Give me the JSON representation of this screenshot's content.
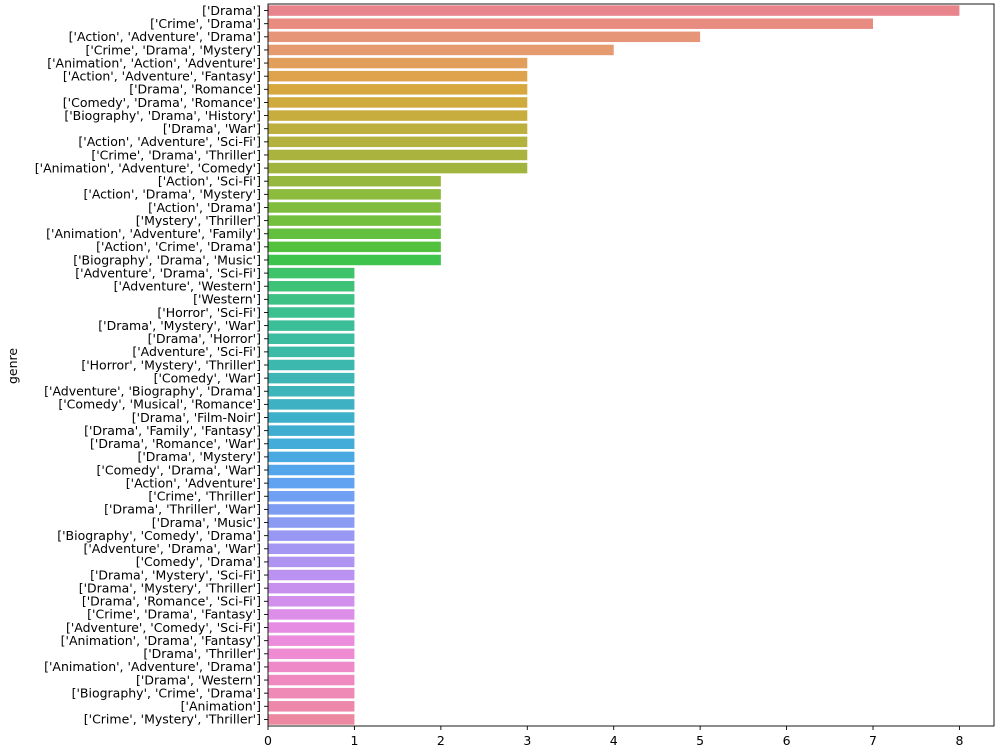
{
  "chart_data": {
    "type": "bar",
    "orientation": "horizontal",
    "title": "",
    "xlabel": "",
    "ylabel": "genre",
    "xlim": [
      0,
      8.4
    ],
    "xticks": [
      "0",
      "1",
      "2",
      "3",
      "4",
      "5",
      "6",
      "7",
      "8"
    ],
    "grid": false,
    "legend": "none",
    "categories": [
      "['Drama']",
      "['Crime', 'Drama']",
      "['Action', 'Adventure', 'Drama']",
      "['Crime', 'Drama', 'Mystery']",
      "['Animation', 'Action', 'Adventure']",
      "['Action', 'Adventure', 'Fantasy']",
      "['Drama', 'Romance']",
      "['Comedy', 'Drama', 'Romance']",
      "['Biography', 'Drama', 'History']",
      "['Drama', 'War']",
      "['Action', 'Adventure', 'Sci-Fi']",
      "['Crime', 'Drama', 'Thriller']",
      "['Animation', 'Adventure', 'Comedy']",
      "['Action', 'Sci-Fi']",
      "['Action', 'Drama', 'Mystery']",
      "['Action', 'Drama']",
      "['Mystery', 'Thriller']",
      "['Animation', 'Adventure', 'Family']",
      "['Action', 'Crime', 'Drama']",
      "['Biography', 'Drama', 'Music']",
      "['Adventure', 'Drama', 'Sci-Fi']",
      "['Adventure', 'Western']",
      "['Western']",
      "['Horror', 'Sci-Fi']",
      "['Drama', 'Mystery', 'War']",
      "['Drama', 'Horror']",
      "['Adventure', 'Sci-Fi']",
      "['Horror', 'Mystery', 'Thriller']",
      "['Comedy', 'War']",
      "['Adventure', 'Biography', 'Drama']",
      "['Comedy', 'Musical', 'Romance']",
      "['Drama', 'Film-Noir']",
      "['Drama', 'Family', 'Fantasy']",
      "['Drama', 'Romance', 'War']",
      "['Drama', 'Mystery']",
      "['Comedy', 'Drama', 'War']",
      "['Action', 'Adventure']",
      "['Crime', 'Thriller']",
      "['Drama', 'Thriller', 'War']",
      "['Drama', 'Music']",
      "['Biography', 'Comedy', 'Drama']",
      "['Adventure', 'Drama', 'War']",
      "['Comedy', 'Drama']",
      "['Drama', 'Mystery', 'Sci-Fi']",
      "['Drama', 'Mystery', 'Thriller']",
      "['Drama', 'Romance', 'Sci-Fi']",
      "['Crime', 'Drama', 'Fantasy']",
      "['Adventure', 'Comedy', 'Sci-Fi']",
      "['Animation', 'Drama', 'Fantasy']",
      "['Drama', 'Thriller']",
      "['Animation', 'Adventure', 'Drama']",
      "['Drama', 'Western']",
      "['Biography', 'Crime', 'Drama']",
      "['Animation']",
      "['Crime', 'Mystery', 'Thriller']"
    ],
    "values": [
      8,
      7,
      5,
      4,
      3,
      3,
      3,
      3,
      3,
      3,
      3,
      3,
      3,
      2,
      2,
      2,
      2,
      2,
      2,
      2,
      1,
      1,
      1,
      1,
      1,
      1,
      1,
      1,
      1,
      1,
      1,
      1,
      1,
      1,
      1,
      1,
      1,
      1,
      1,
      1,
      1,
      1,
      1,
      1,
      1,
      1,
      1,
      1,
      1,
      1,
      1,
      1,
      1,
      1,
      1
    ],
    "colors": [
      "#e8848c",
      "#e88b80",
      "#e79578",
      "#e59a6f",
      "#e29f5c",
      "#e0a34d",
      "#d7a83e",
      "#cfab3e",
      "#c6ad3e",
      "#bdaf3e",
      "#b3b23e",
      "#aab33e",
      "#a1b53e",
      "#97b83e",
      "#8cbb3e",
      "#80bd3e",
      "#73bf3e",
      "#63c03e",
      "#52c23e",
      "#3ec34c",
      "#3ec36a",
      "#3ec278",
      "#3dc184",
      "#3cc08f",
      "#3cbe98",
      "#3cbca0",
      "#3cbaa8",
      "#3cb8ae",
      "#3db6b5",
      "#3eb4bb",
      "#3eb2c2",
      "#3fb0c9",
      "#41aed1",
      "#44acd9",
      "#4aa9e1",
      "#54a6ea",
      "#61a3f0",
      "#70a0f1",
      "#7e9df2",
      "#8b9af3",
      "#9898f3",
      "#a496f3",
      "#b094f2",
      "#bb92f1",
      "#c790ef",
      "#d28fec",
      "#dd8ee8",
      "#e68de3",
      "#ec8cdc",
      "#ee8bd3",
      "#ef8ac9",
      "#ef89bf",
      "#ef89b5",
      "#ed88aa",
      "#ec889f"
    ]
  }
}
